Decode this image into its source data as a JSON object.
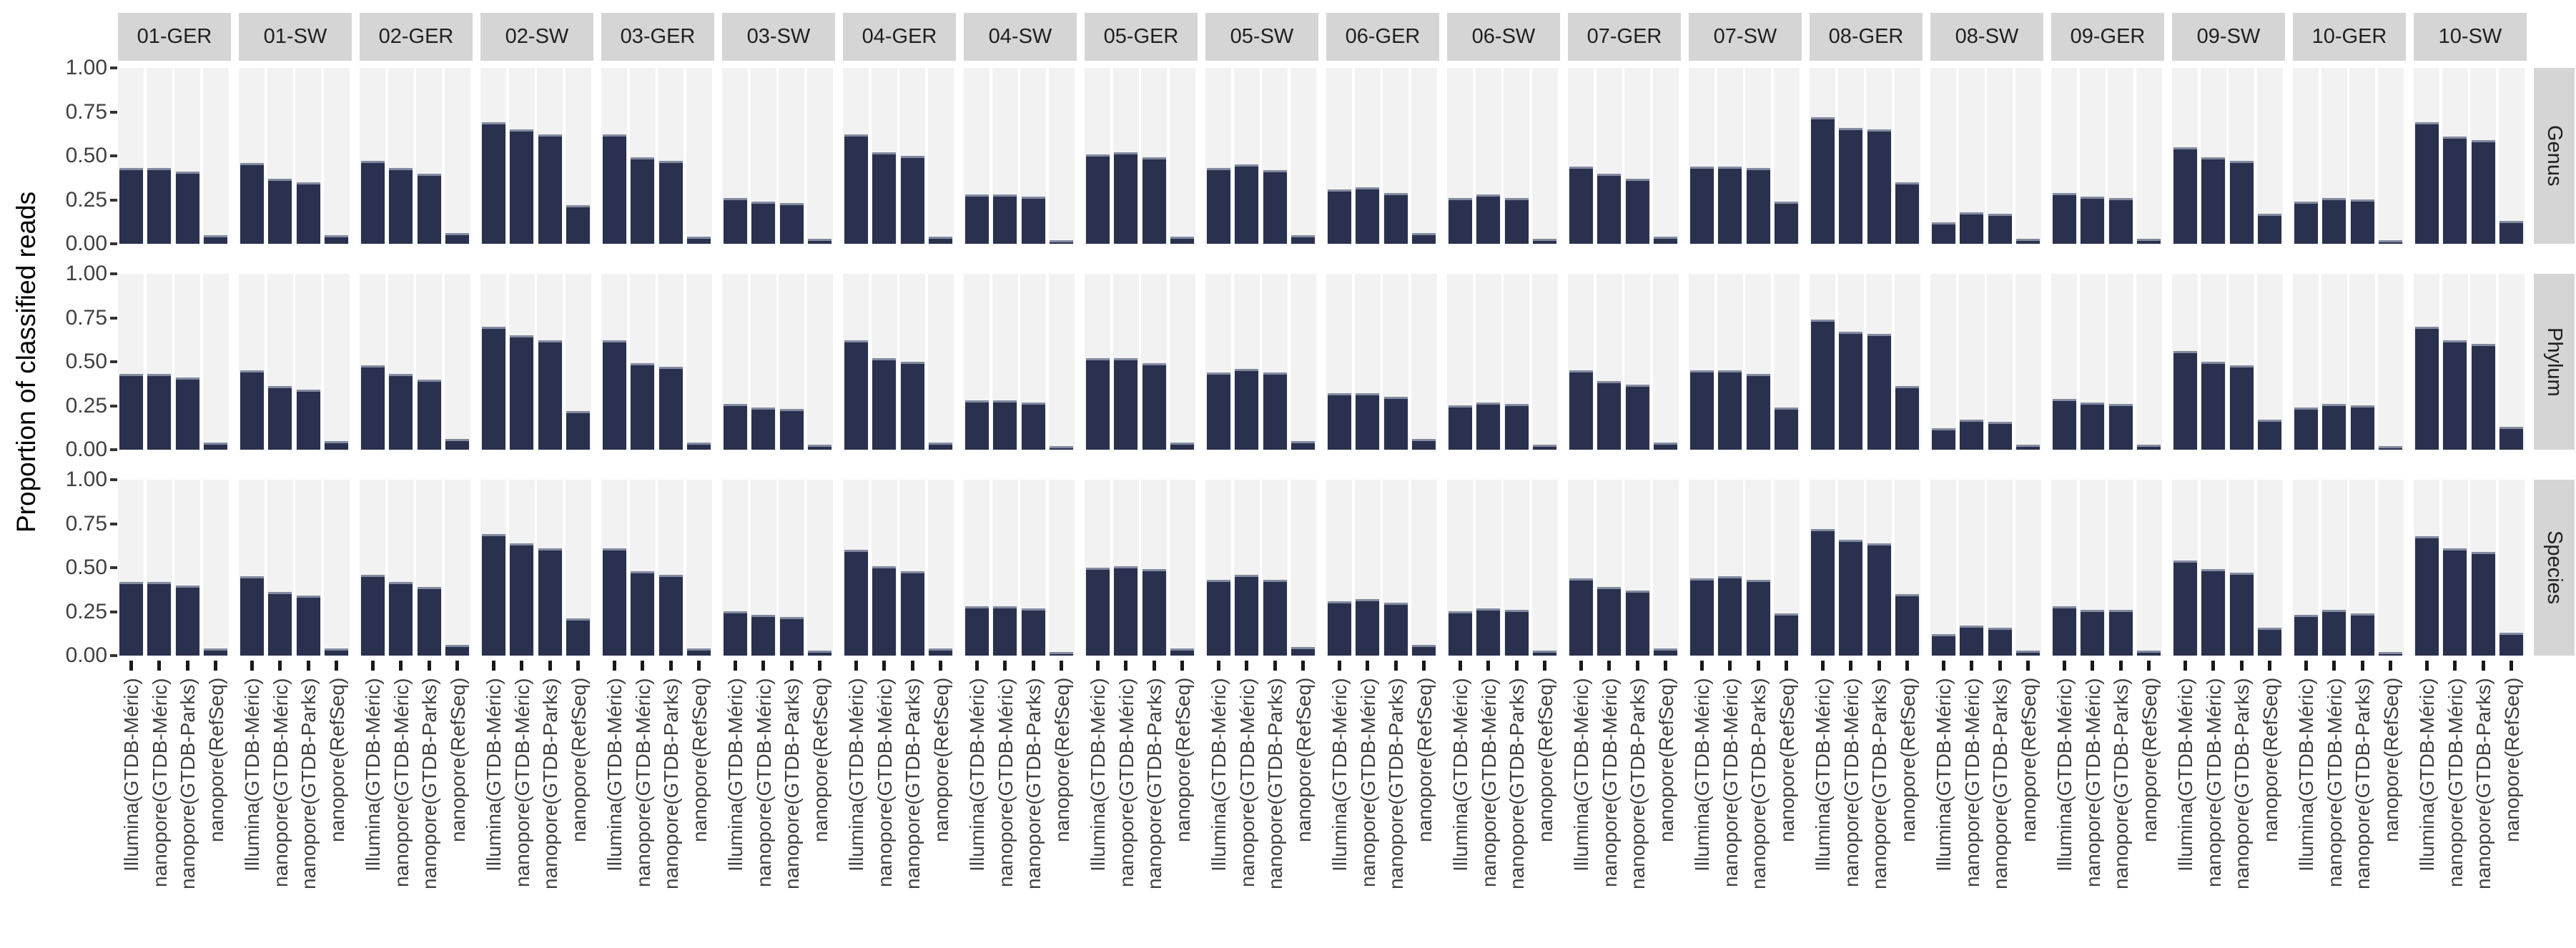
{
  "chart_data": {
    "type": "bar",
    "title": "",
    "ylabel": "Proportion of classified reads",
    "xlabel": "",
    "ylim": [
      0,
      1
    ],
    "grid": "category background stripes, no horizontal gridlines",
    "legend": "none",
    "y_ticks": [
      "1.00",
      "0.75",
      "0.50",
      "0.25",
      "0.00"
    ],
    "y_tick_values": [
      1.0,
      0.75,
      0.5,
      0.25,
      0.0
    ],
    "categories": [
      "Illumina(GTDB-Méric)",
      "nanopore(GTDB-Méric)",
      "nanopore(GTDB-Parks)",
      "nanopore(RefSeq)"
    ],
    "facet_columns": [
      "01-GER",
      "01-SW",
      "02-GER",
      "02-SW",
      "03-GER",
      "03-SW",
      "04-GER",
      "04-SW",
      "05-GER",
      "05-SW",
      "06-GER",
      "06-SW",
      "07-GER",
      "07-SW",
      "08-GER",
      "08-SW",
      "09-GER",
      "09-SW",
      "10-GER",
      "10-SW"
    ],
    "facet_rows": [
      "Genus",
      "Phylum",
      "Species"
    ],
    "series": [
      {
        "name": "Genus",
        "values": [
          [
            0.43,
            0.43,
            0.41,
            0.05
          ],
          [
            0.46,
            0.37,
            0.35,
            0.05
          ],
          [
            0.47,
            0.43,
            0.4,
            0.06
          ],
          [
            0.69,
            0.65,
            0.62,
            0.22
          ],
          [
            0.62,
            0.49,
            0.47,
            0.04
          ],
          [
            0.26,
            0.24,
            0.23,
            0.03
          ],
          [
            0.62,
            0.52,
            0.5,
            0.04
          ],
          [
            0.28,
            0.28,
            0.27,
            0.02
          ],
          [
            0.51,
            0.52,
            0.49,
            0.04
          ],
          [
            0.43,
            0.45,
            0.42,
            0.05
          ],
          [
            0.31,
            0.32,
            0.29,
            0.06
          ],
          [
            0.26,
            0.28,
            0.26,
            0.03
          ],
          [
            0.44,
            0.4,
            0.37,
            0.04
          ],
          [
            0.44,
            0.44,
            0.43,
            0.24
          ],
          [
            0.72,
            0.66,
            0.65,
            0.35
          ],
          [
            0.12,
            0.18,
            0.17,
            0.03
          ],
          [
            0.29,
            0.27,
            0.26,
            0.03
          ],
          [
            0.55,
            0.49,
            0.47,
            0.17
          ],
          [
            0.24,
            0.26,
            0.25,
            0.02
          ],
          [
            0.69,
            0.61,
            0.59,
            0.13
          ]
        ]
      },
      {
        "name": "Phylum",
        "values": [
          [
            0.43,
            0.43,
            0.41,
            0.04
          ],
          [
            0.45,
            0.36,
            0.34,
            0.05
          ],
          [
            0.48,
            0.43,
            0.4,
            0.06
          ],
          [
            0.7,
            0.65,
            0.62,
            0.22
          ],
          [
            0.62,
            0.49,
            0.47,
            0.04
          ],
          [
            0.26,
            0.24,
            0.23,
            0.03
          ],
          [
            0.62,
            0.52,
            0.5,
            0.04
          ],
          [
            0.28,
            0.28,
            0.27,
            0.02
          ],
          [
            0.52,
            0.52,
            0.49,
            0.04
          ],
          [
            0.44,
            0.46,
            0.44,
            0.05
          ],
          [
            0.32,
            0.32,
            0.3,
            0.06
          ],
          [
            0.25,
            0.27,
            0.26,
            0.03
          ],
          [
            0.45,
            0.39,
            0.37,
            0.04
          ],
          [
            0.45,
            0.45,
            0.43,
            0.24
          ],
          [
            0.74,
            0.67,
            0.66,
            0.36
          ],
          [
            0.12,
            0.17,
            0.16,
            0.03
          ],
          [
            0.29,
            0.27,
            0.26,
            0.03
          ],
          [
            0.56,
            0.5,
            0.48,
            0.17
          ],
          [
            0.24,
            0.26,
            0.25,
            0.02
          ],
          [
            0.7,
            0.62,
            0.6,
            0.13
          ]
        ]
      },
      {
        "name": "Species",
        "values": [
          [
            0.42,
            0.42,
            0.4,
            0.04
          ],
          [
            0.45,
            0.36,
            0.34,
            0.04
          ],
          [
            0.46,
            0.42,
            0.39,
            0.06
          ],
          [
            0.69,
            0.64,
            0.61,
            0.21
          ],
          [
            0.61,
            0.48,
            0.46,
            0.04
          ],
          [
            0.25,
            0.23,
            0.22,
            0.03
          ],
          [
            0.6,
            0.51,
            0.48,
            0.04
          ],
          [
            0.28,
            0.28,
            0.27,
            0.02
          ],
          [
            0.5,
            0.51,
            0.49,
            0.04
          ],
          [
            0.43,
            0.46,
            0.43,
            0.05
          ],
          [
            0.31,
            0.32,
            0.3,
            0.06
          ],
          [
            0.25,
            0.27,
            0.26,
            0.03
          ],
          [
            0.44,
            0.39,
            0.37,
            0.04
          ],
          [
            0.44,
            0.45,
            0.43,
            0.24
          ],
          [
            0.72,
            0.66,
            0.64,
            0.35
          ],
          [
            0.12,
            0.17,
            0.16,
            0.03
          ],
          [
            0.28,
            0.26,
            0.26,
            0.03
          ],
          [
            0.54,
            0.49,
            0.47,
            0.16
          ],
          [
            0.23,
            0.26,
            0.24,
            0.02
          ],
          [
            0.68,
            0.61,
            0.59,
            0.13
          ]
        ]
      }
    ],
    "colors": {
      "bar": "#2a314e",
      "bar_top_edge": "#828aa0",
      "panel_stripe": "#f2f2f2",
      "strip_background": "#d5d5d5",
      "strip_text": "#1f1f1f",
      "tick_text": "#404040",
      "axis_title_text": "#000000",
      "background": "#ffffff"
    }
  }
}
